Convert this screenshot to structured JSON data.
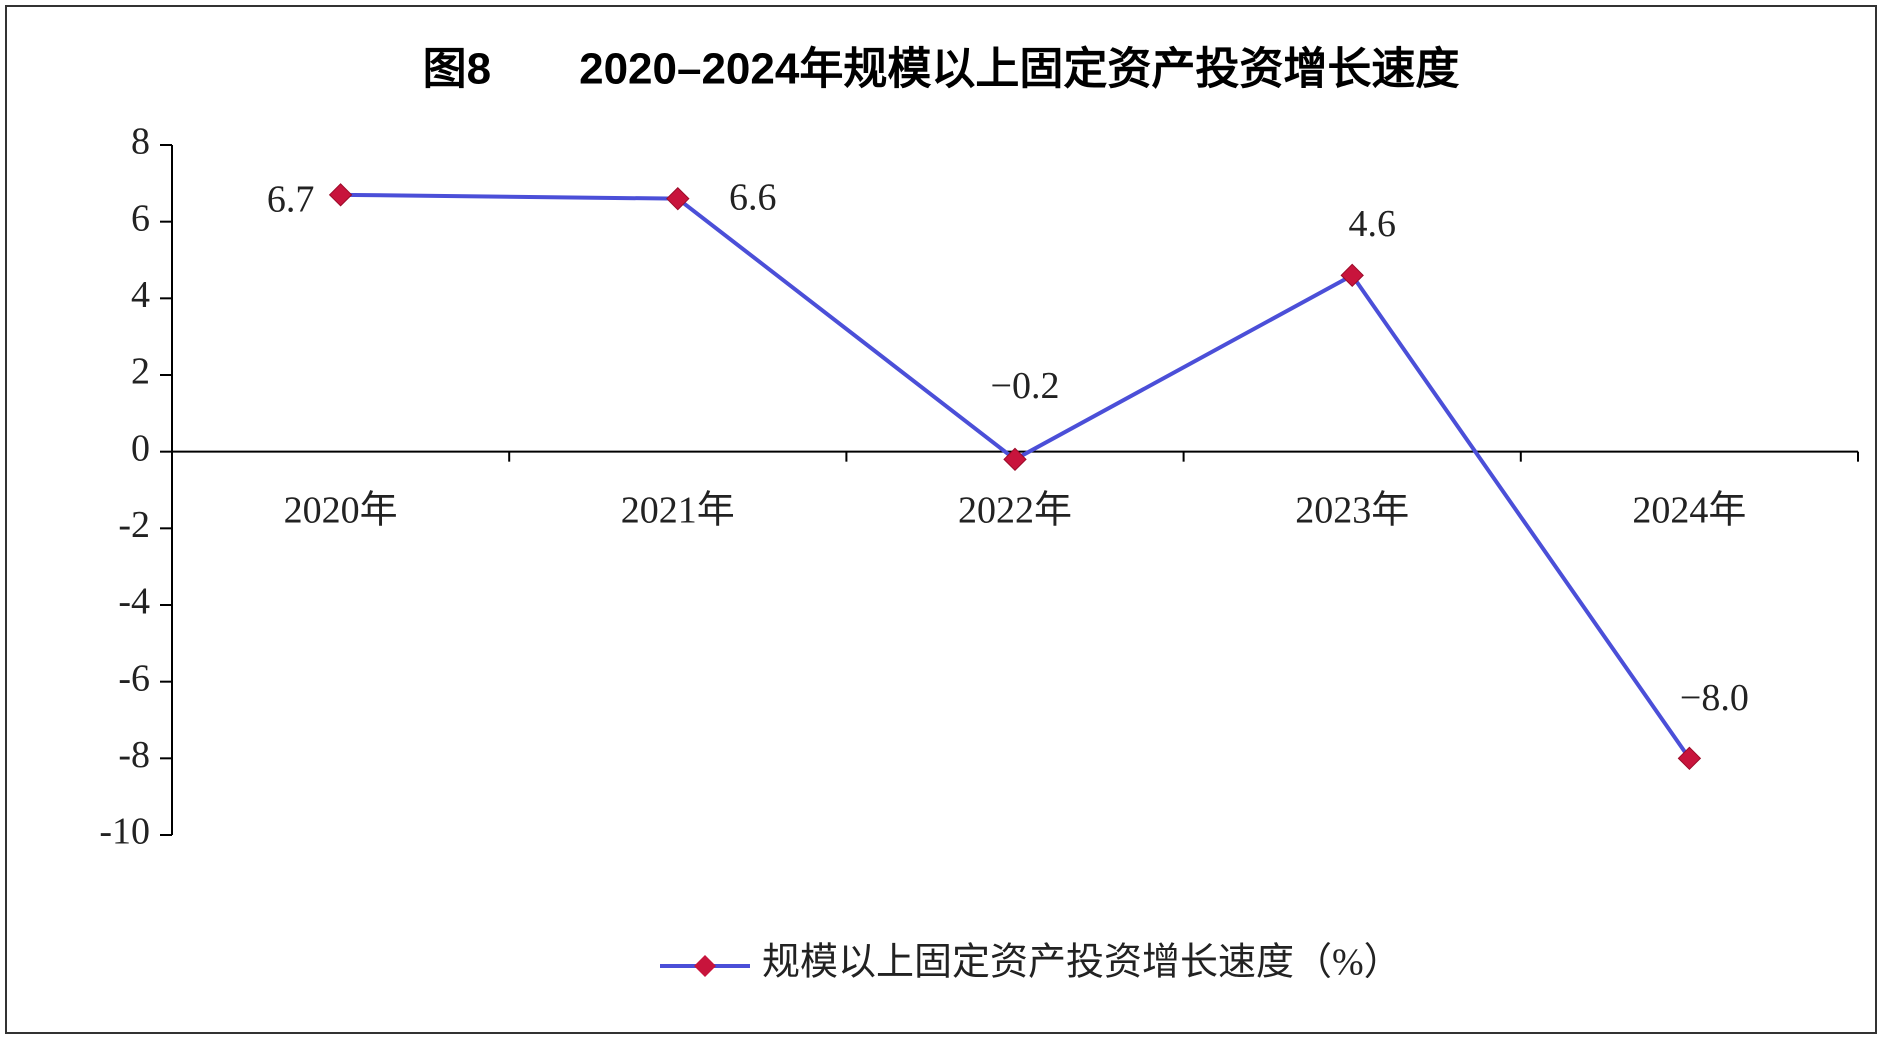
{
  "chart_data": {
    "type": "line",
    "title": "图8　　2020–2024年规模以上固定资产投资增长速度",
    "categories": [
      "2020年",
      "2021年",
      "2022年",
      "2023年",
      "2024年"
    ],
    "series": [
      {
        "name": "规模以上固定资产投资增长速度（%）",
        "color": "#4b4fd8",
        "marker_color": "#c8143c",
        "values": [
          6.7,
          6.6,
          -0.2,
          4.6,
          -8.0
        ],
        "value_labels": [
          "6.7",
          "6.6",
          "−0.2",
          "4.6",
          "−8.0"
        ]
      }
    ],
    "ylim": [
      -10,
      8
    ],
    "yticks": [
      -10,
      -8,
      -6,
      -4,
      -2,
      0,
      2,
      4,
      6,
      8
    ],
    "grid": false,
    "legend": "bottom"
  }
}
